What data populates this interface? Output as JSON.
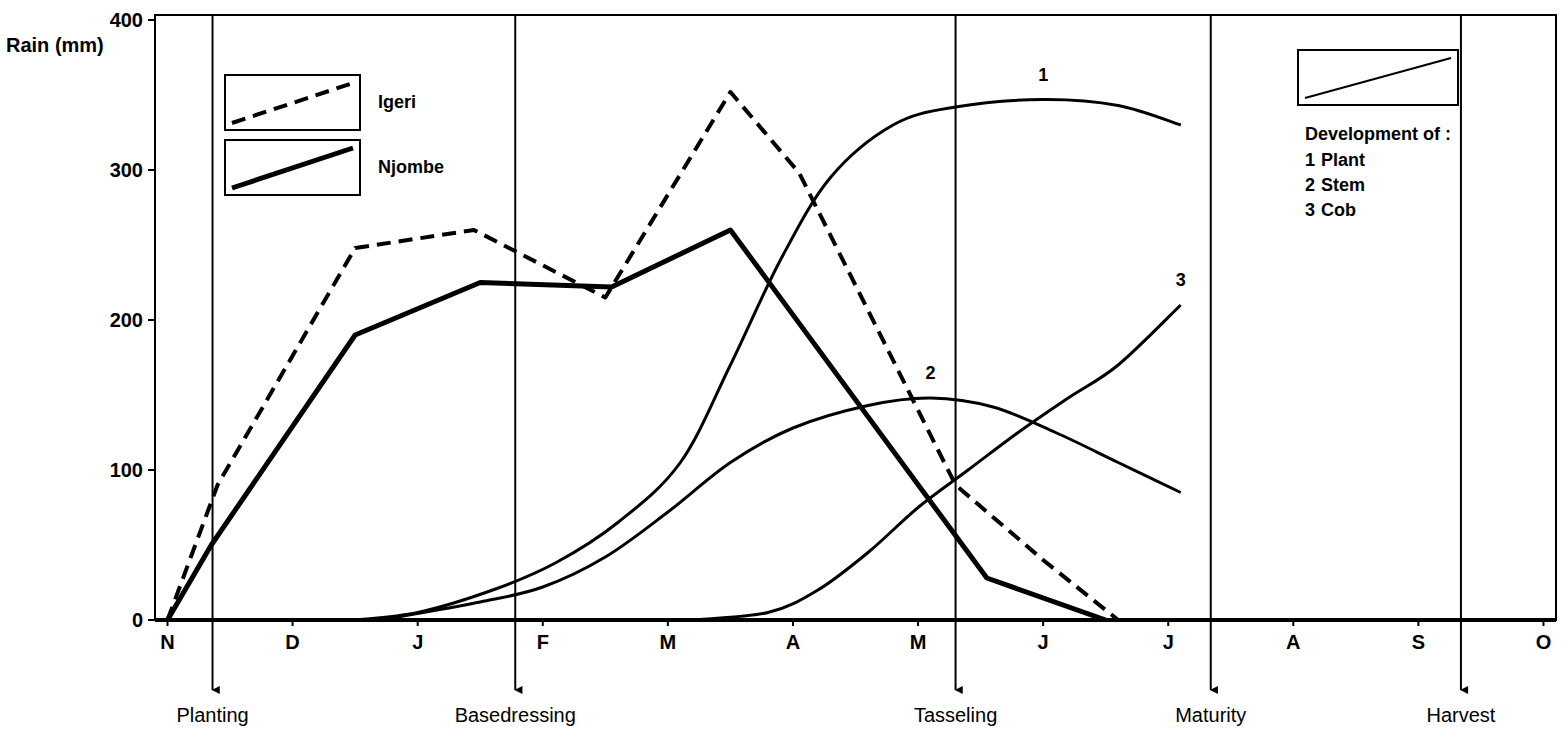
{
  "chart_data": {
    "type": "line",
    "y_label": "Rain (mm)",
    "xlim": [
      -0.1,
      11.1
    ],
    "xticks": [
      {
        "value": 0,
        "label": "N"
      },
      {
        "value": 1,
        "label": "D"
      },
      {
        "value": 2,
        "label": "J"
      },
      {
        "value": 3,
        "label": "F"
      },
      {
        "value": 4,
        "label": "M"
      },
      {
        "value": 5,
        "label": "A"
      },
      {
        "value": 6,
        "label": "M"
      },
      {
        "value": 7,
        "label": "J"
      },
      {
        "value": 8,
        "label": "J"
      },
      {
        "value": 9,
        "label": "A"
      },
      {
        "value": 10,
        "label": "S"
      },
      {
        "value": 11,
        "label": "O"
      }
    ],
    "ylim": [
      0,
      400
    ],
    "yticks": [
      0,
      100,
      200,
      300,
      400
    ],
    "grid": false,
    "legend": "upper left",
    "legend_title": "Development of :",
    "series": [
      {
        "name": "Igeri",
        "color": "#000000",
        "line_style": "dashed",
        "x": [
          0,
          0.4,
          1.5,
          2.45,
          3.5,
          4.5,
          5.05,
          6.3,
          7.0,
          7.6
        ],
        "values": [
          0,
          90,
          248,
          260,
          215,
          352,
          298,
          90,
          40,
          0
        ]
      },
      {
        "name": "Njombe",
        "color": "#000000",
        "line_style": "solid",
        "x": [
          0,
          0.35,
          1.5,
          2.5,
          3.55,
          4.5,
          6.55,
          7.5
        ],
        "values": [
          0,
          50,
          190,
          225,
          222,
          260,
          28,
          0
        ]
      },
      {
        "name": "Plant",
        "label": "1",
        "color": "#000000",
        "line_style": "solid",
        "x": [
          1.5,
          2,
          2.6,
          3.1,
          3.6,
          4.1,
          4.5,
          4.9,
          5.3,
          5.8,
          6.3,
          7,
          7.6,
          8.1
        ],
        "values": [
          0,
          5,
          20,
          38,
          65,
          105,
          170,
          240,
          295,
          330,
          342,
          347,
          343,
          330
        ]
      },
      {
        "name": "Stem",
        "label": "2",
        "color": "#000000",
        "line_style": "solid",
        "x": [
          1.7,
          2.5,
          3,
          3.5,
          4,
          4.5,
          5,
          5.6,
          6.1,
          6.6,
          7.1,
          7.6,
          8.1
        ],
        "values": [
          0,
          12,
          22,
          42,
          72,
          105,
          128,
          143,
          148,
          142,
          125,
          105,
          85
        ]
      },
      {
        "name": "Cob",
        "label": "3",
        "color": "#000000",
        "line_style": "solid",
        "x": [
          4.2,
          4.8,
          5.2,
          5.6,
          6,
          6.4,
          6.8,
          7.2,
          7.6,
          8.1
        ],
        "values": [
          0,
          5,
          20,
          45,
          75,
          100,
          125,
          148,
          170,
          210
        ]
      }
    ],
    "annotations": [
      {
        "text": "Planting",
        "x": 0.36
      },
      {
        "text": "Basedressing",
        "x": 2.78
      },
      {
        "text": "Tasseling",
        "x": 6.3
      },
      {
        "text": "Maturity",
        "x": 8.34
      },
      {
        "text": "Harvest",
        "x": 10.34
      }
    ]
  }
}
